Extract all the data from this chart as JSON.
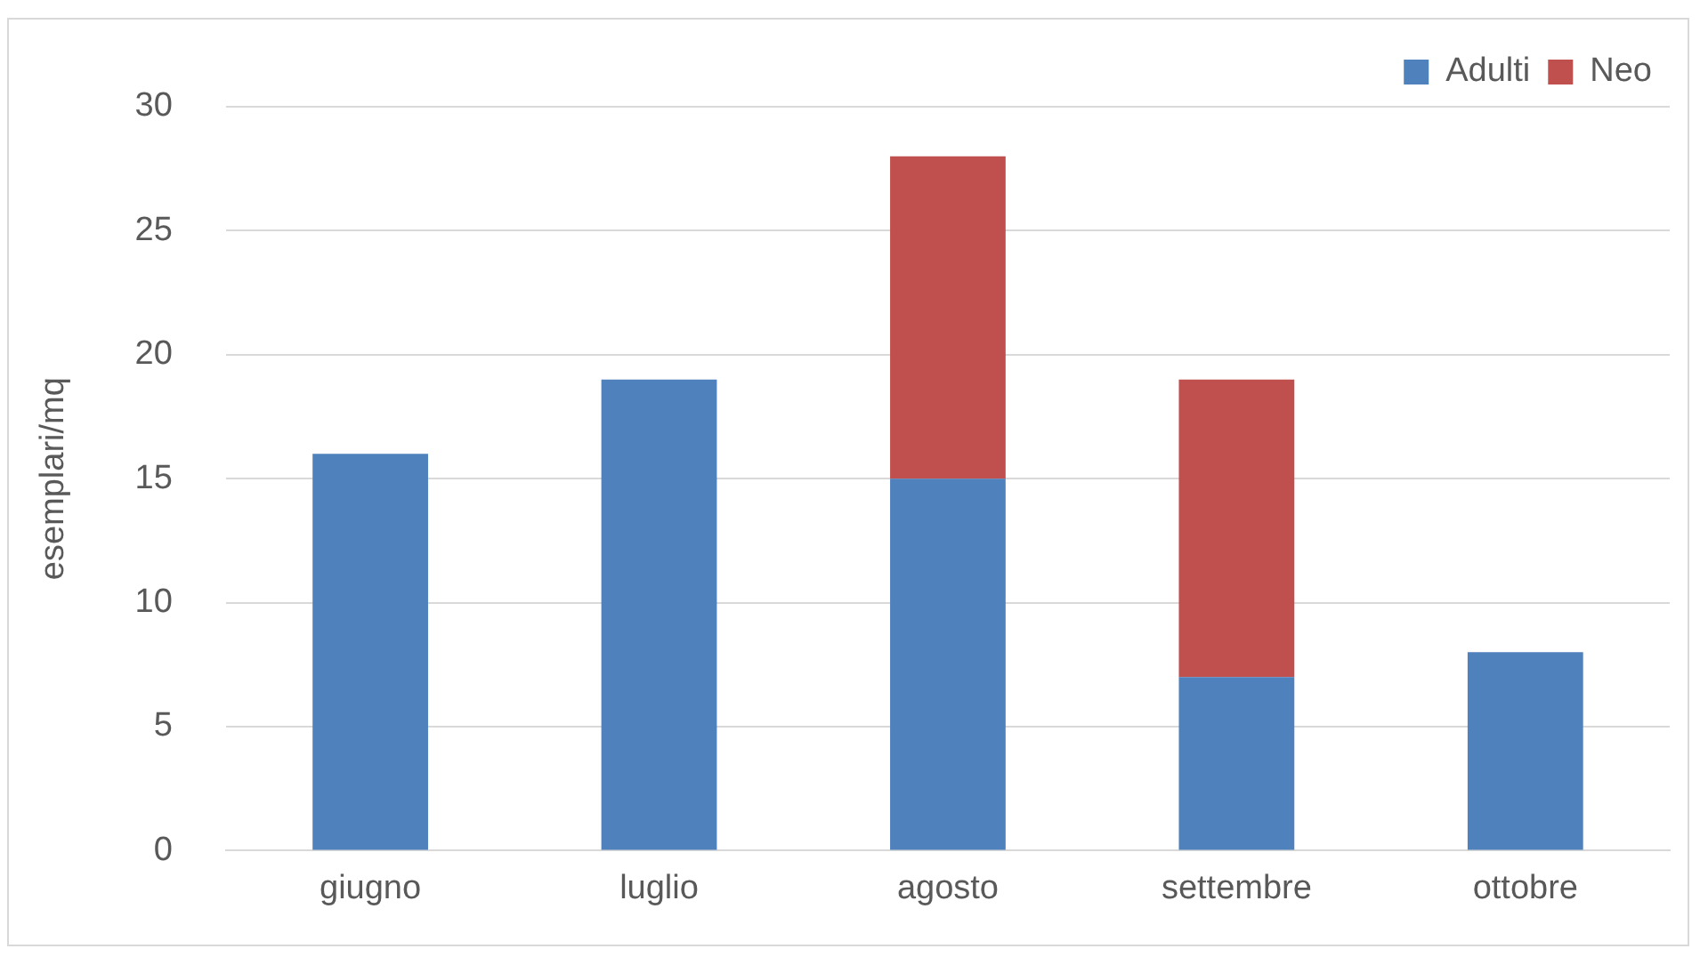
{
  "chart_data": {
    "type": "bar",
    "ylabel": "esemplari/mq",
    "categories": [
      "giugno",
      "luglio",
      "agosto",
      "settembre",
      "ottobre"
    ],
    "series": [
      {
        "name": "Adulti",
        "color": "#4f81bd",
        "values": [
          16,
          19,
          15,
          7,
          8
        ]
      },
      {
        "name": "Neo",
        "color": "#c0504d",
        "values": [
          null,
          null,
          13,
          12,
          null
        ]
      }
    ],
    "stacked": true,
    "ylim": [
      0,
      30
    ],
    "yticks": [
      0,
      5,
      10,
      15,
      20,
      25,
      30
    ],
    "grid": "y",
    "legend": "top right"
  }
}
